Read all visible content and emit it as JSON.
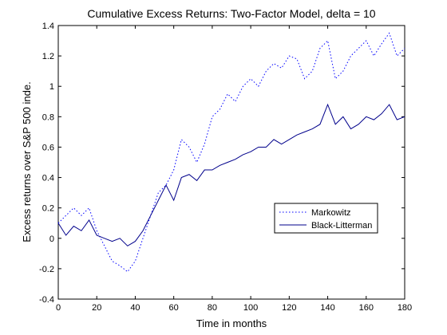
{
  "chart_data": {
    "type": "line",
    "title": "Cumulative Excess Returns: Two-Factor Model, delta = 10",
    "xlabel": "Time in months",
    "ylabel": "Excess returns over S&P 500 inde.",
    "x": [
      0,
      4,
      8,
      12,
      16,
      20,
      24,
      28,
      32,
      36,
      40,
      44,
      48,
      52,
      56,
      60,
      64,
      68,
      72,
      76,
      80,
      84,
      88,
      92,
      96,
      100,
      104,
      108,
      112,
      116,
      120,
      124,
      128,
      132,
      136,
      140,
      144,
      148,
      152,
      156,
      160,
      164,
      168,
      172,
      176,
      180
    ],
    "series": [
      {
        "name": "Markowitz",
        "color": "#0000ff",
        "dash": "dotted",
        "values": [
          0.1,
          0.15,
          0.2,
          0.15,
          0.2,
          0.05,
          -0.05,
          -0.15,
          -0.18,
          -0.22,
          -0.15,
          0.0,
          0.15,
          0.3,
          0.35,
          0.45,
          0.65,
          0.6,
          0.5,
          0.62,
          0.8,
          0.85,
          0.95,
          0.9,
          1.0,
          1.05,
          1.0,
          1.1,
          1.15,
          1.12,
          1.2,
          1.18,
          1.05,
          1.1,
          1.25,
          1.3,
          1.05,
          1.1,
          1.2,
          1.25,
          1.3,
          1.2,
          1.28,
          1.35,
          1.2,
          1.25
        ]
      },
      {
        "name": "Black-Litterman",
        "color": "#00008b",
        "dash": "solid",
        "values": [
          0.1,
          0.02,
          0.08,
          0.05,
          0.12,
          0.02,
          0.0,
          -0.02,
          0.0,
          -0.05,
          -0.02,
          0.05,
          0.15,
          0.25,
          0.35,
          0.25,
          0.4,
          0.42,
          0.38,
          0.45,
          0.45,
          0.48,
          0.5,
          0.52,
          0.55,
          0.57,
          0.6,
          0.6,
          0.65,
          0.62,
          0.65,
          0.68,
          0.7,
          0.72,
          0.75,
          0.88,
          0.75,
          0.8,
          0.72,
          0.75,
          0.8,
          0.78,
          0.82,
          0.88,
          0.78,
          0.8
        ]
      }
    ],
    "xlim": [
      0,
      180
    ],
    "xticks": [
      0,
      20,
      40,
      60,
      80,
      100,
      120,
      140,
      160,
      180
    ],
    "ylim": [
      -0.4,
      1.4
    ],
    "yticks": [
      -0.4,
      -0.2,
      0,
      0.2,
      0.4,
      0.6,
      0.8,
      1,
      1.2,
      1.4
    ],
    "grid": false,
    "legend_loc": "right"
  }
}
